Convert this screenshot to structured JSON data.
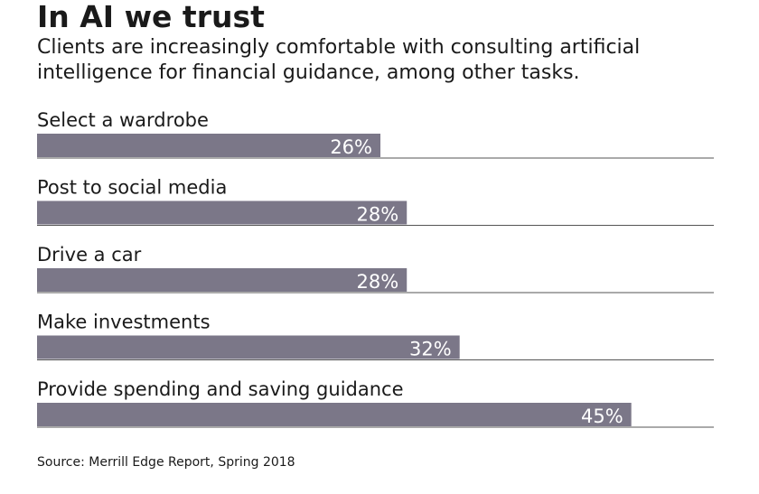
{
  "chart_data": {
    "type": "bar",
    "orientation": "horizontal",
    "title": "In AI we trust",
    "subtitle": "Clients are increasingly comfortable with consulting artificial intelligence for financial guidance, among other tasks.",
    "categories": [
      "Select a wardrobe",
      "Post to social media",
      "Drive a car",
      "Make investments",
      "Provide spending and saving guidance"
    ],
    "values": [
      26,
      28,
      28,
      32,
      45
    ],
    "value_labels": [
      "26%",
      "28%",
      "28%",
      "32%",
      "45%"
    ],
    "unit": "%",
    "xlim": [
      0,
      52
    ],
    "bar_color": "#7b7788",
    "baseline_color": "#555555",
    "source": "Source: Merrill Edge Report, Spring 2018"
  }
}
